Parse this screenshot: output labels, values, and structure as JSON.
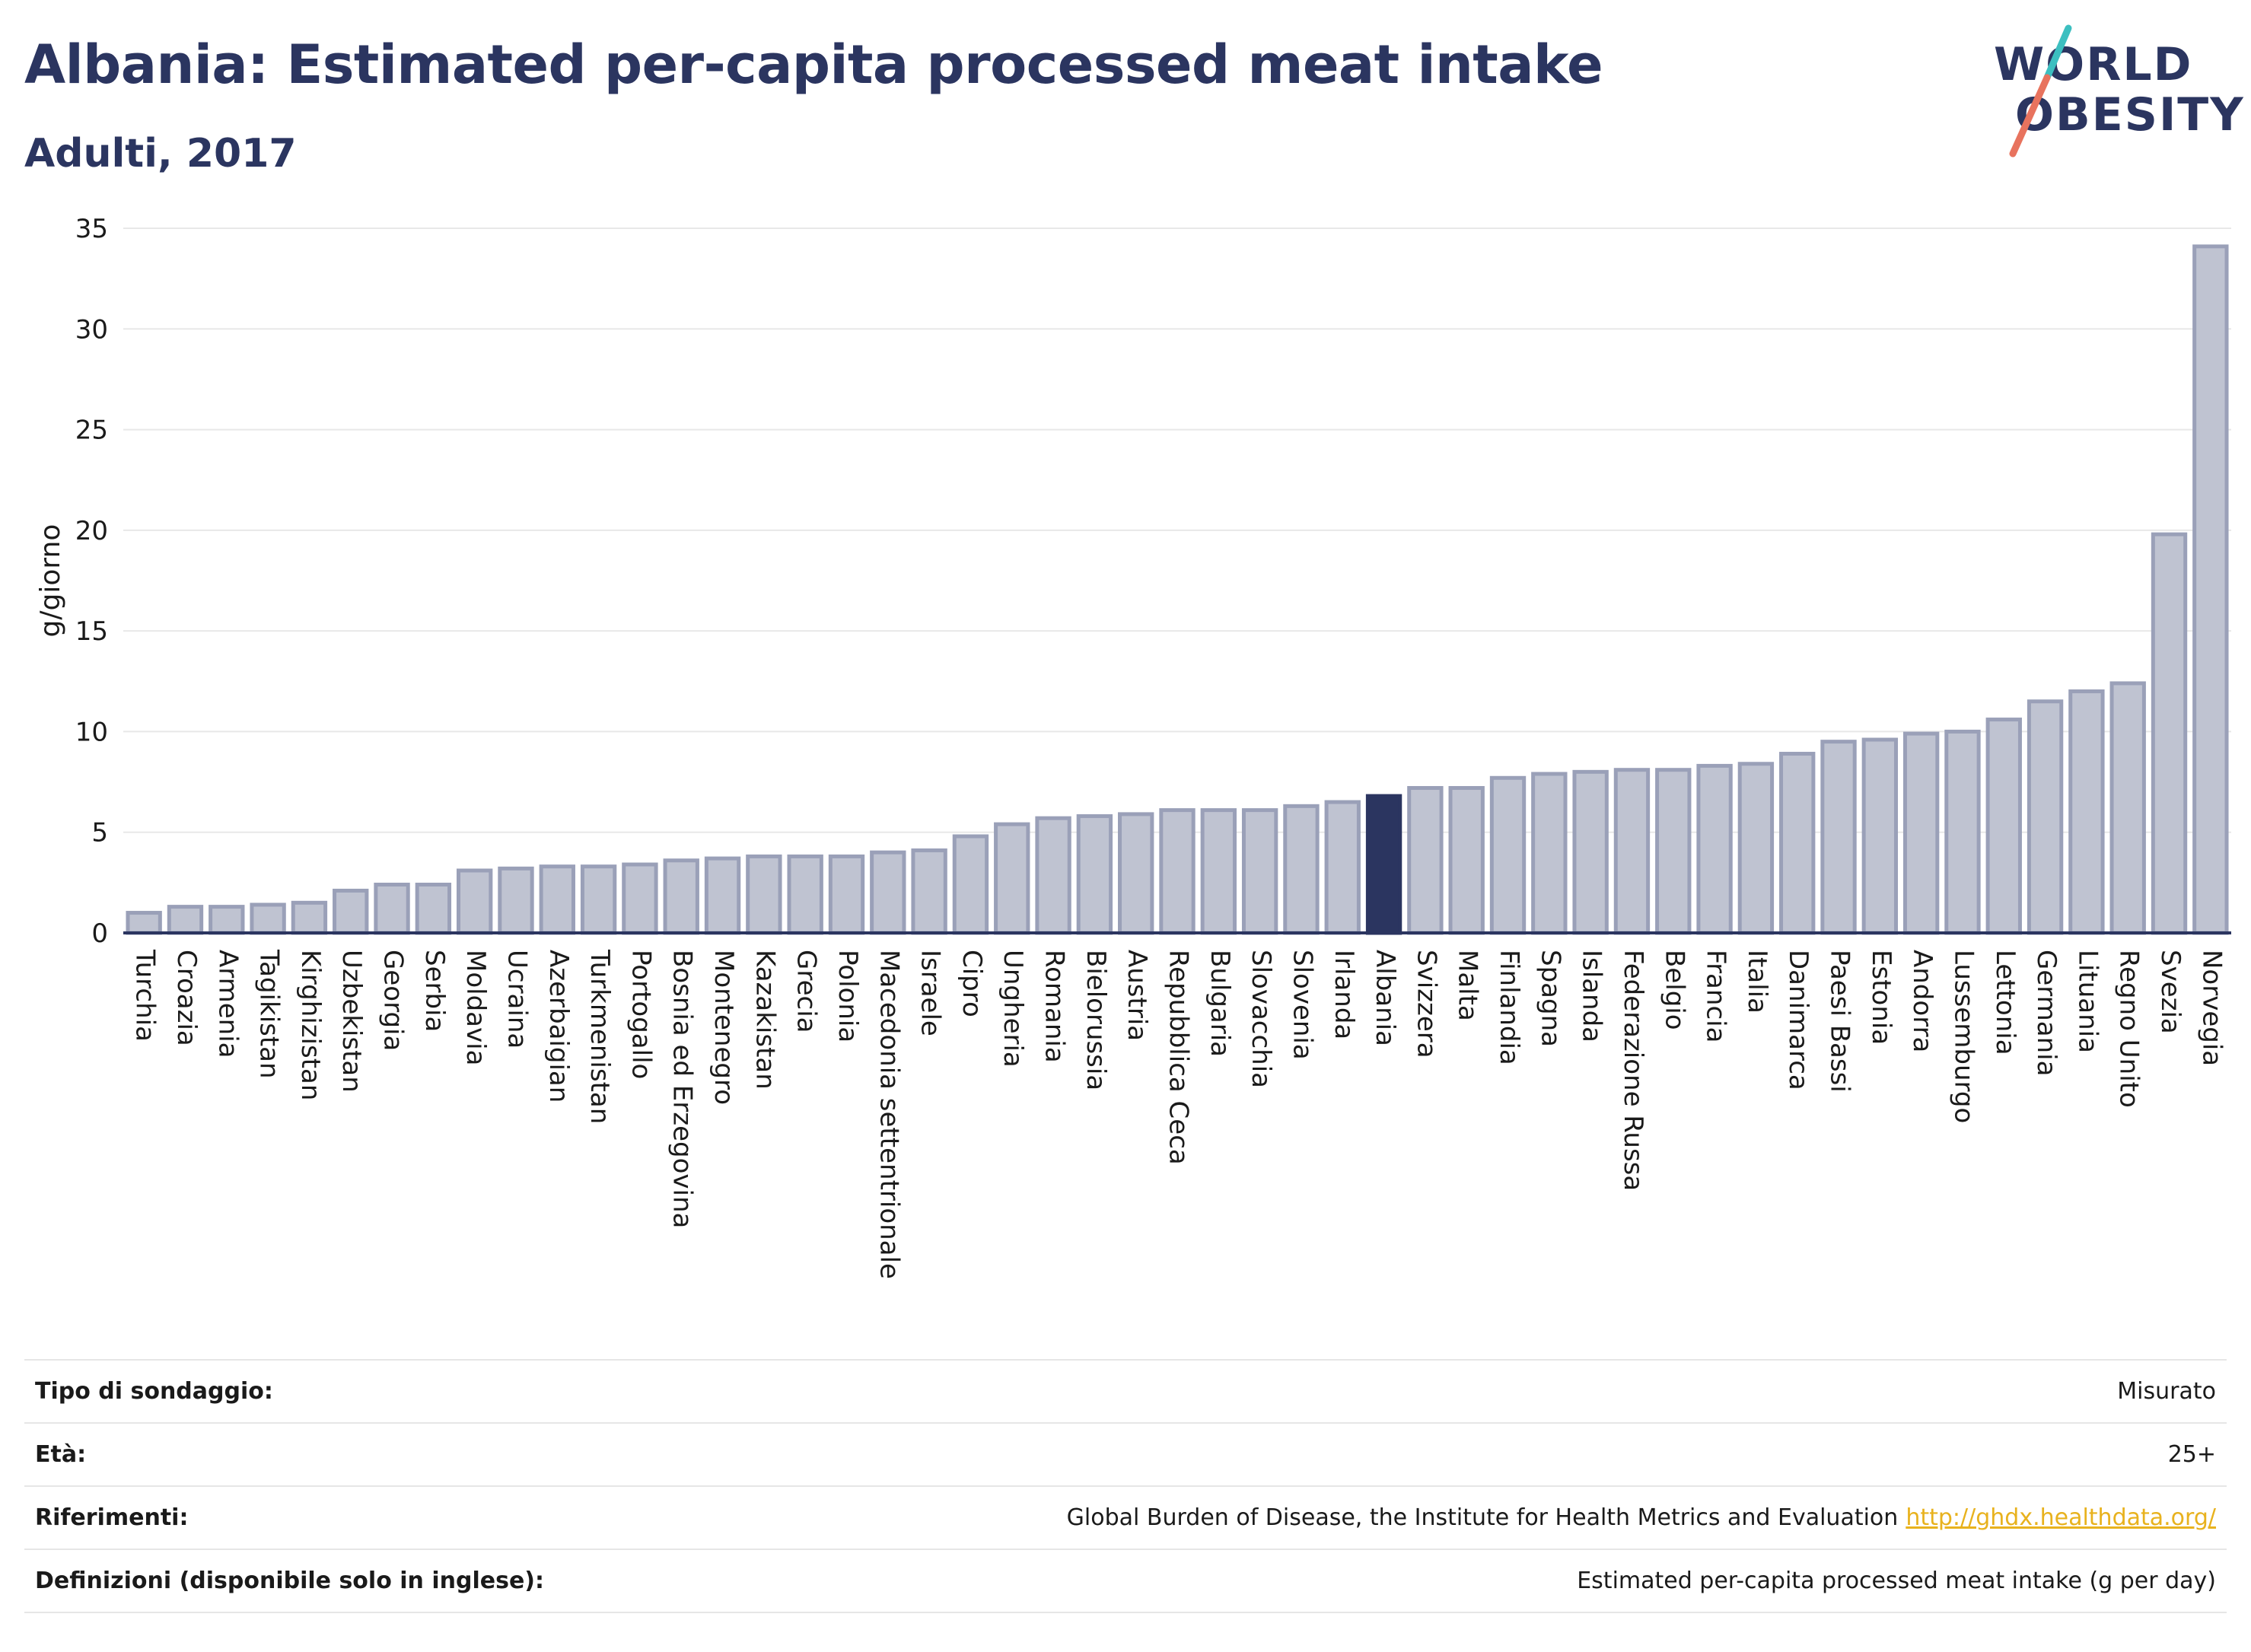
{
  "header": {
    "title": "Albania: Estimated per-capita processed meat intake",
    "subtitle": "Adulti, 2017"
  },
  "logo": {
    "line1": "WORLD",
    "line2": "OBESITY",
    "icon": "slash-mark"
  },
  "colors": {
    "bar": "#bfc3d1",
    "bar_border": "#9aa0b8",
    "highlight": "#2b3560",
    "grid": "#e8e8e8",
    "axis": "#2b3560",
    "link": "#e8b21e",
    "logo_teal": "#3cbfc0",
    "logo_coral": "#e8735e"
  },
  "chart_data": {
    "type": "bar",
    "ylabel": "g/giorno",
    "ylim": [
      0,
      35
    ],
    "yticks": [
      0,
      5,
      10,
      15,
      20,
      25,
      30,
      35
    ],
    "grid": true,
    "highlight": "Albania",
    "categories": [
      "Turchia",
      "Croazia",
      "Armenia",
      "Tagikistan",
      "Kirghizistan",
      "Uzbekistan",
      "Georgia",
      "Serbia",
      "Moldavia",
      "Ucraina",
      "Azerbaigian",
      "Turkmenistan",
      "Portogallo",
      "Bosnia ed Erzegovina",
      "Montenegro",
      "Kazakistan",
      "Grecia",
      "Polonia",
      "Macedonia settentrionale",
      "Israele",
      "Cipro",
      "Ungheria",
      "Romania",
      "Bielorussia",
      "Austria",
      "Repubblica Ceca",
      "Bulgaria",
      "Slovacchia",
      "Slovenia",
      "Irlanda",
      "Albania",
      "Svizzera",
      "Malta",
      "Finlandia",
      "Spagna",
      "Islanda",
      "Federazione Russa",
      "Belgio",
      "Francia",
      "Italia",
      "Danimarca",
      "Paesi Bassi",
      "Estonia",
      "Andorra",
      "Lussemburgo",
      "Lettonia",
      "Germania",
      "Lituania",
      "Regno Unito",
      "Svezia",
      "Norvegia"
    ],
    "values": [
      1.0,
      1.3,
      1.3,
      1.4,
      1.5,
      2.1,
      2.4,
      2.4,
      3.1,
      3.2,
      3.3,
      3.3,
      3.4,
      3.6,
      3.7,
      3.8,
      3.8,
      3.8,
      4.0,
      4.1,
      4.8,
      5.4,
      5.7,
      5.8,
      5.9,
      6.1,
      6.1,
      6.1,
      6.3,
      6.5,
      6.8,
      7.2,
      7.2,
      7.7,
      7.9,
      8.0,
      8.1,
      8.1,
      8.3,
      8.4,
      8.9,
      9.5,
      9.6,
      9.9,
      10.0,
      10.6,
      11.5,
      12.0,
      12.4,
      19.8,
      34.1
    ]
  },
  "meta": {
    "rows": [
      {
        "label": "Tipo di sondaggio:",
        "value": "Misurato"
      },
      {
        "label": "Età:",
        "value": "25+"
      },
      {
        "label": "Riferimenti:",
        "value": "Global Burden of Disease, the Institute for Health Metrics and Evaluation",
        "link": "http://ghdx.healthdata.org/"
      },
      {
        "label": "Definizioni (disponibile solo in inglese):",
        "value": "Estimated per-capita processed meat intake (g per day)"
      }
    ]
  }
}
